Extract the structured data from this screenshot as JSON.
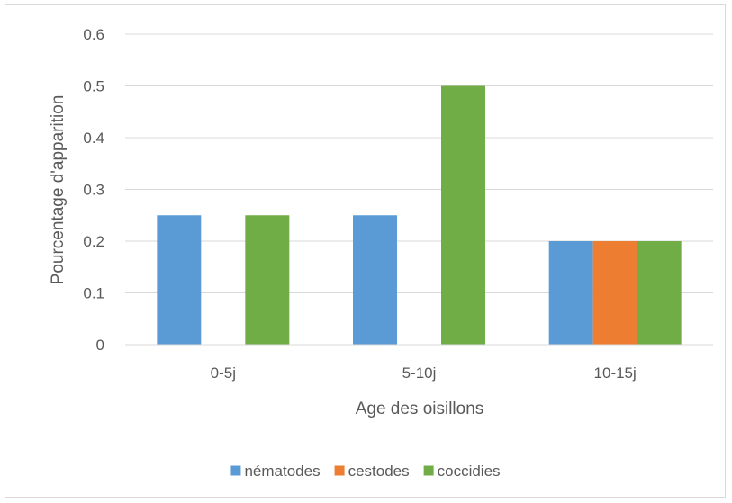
{
  "chart_data": {
    "type": "bar",
    "title": "",
    "xlabel": "Age des oisillons",
    "ylabel": "Pourcentage d'apparition",
    "categories": [
      "0-5j",
      "5-10j",
      "10-15j"
    ],
    "series": [
      {
        "name": "nématodes",
        "values": [
          0.25,
          0.25,
          0.2
        ],
        "color": "#5b9bd5"
      },
      {
        "name": "cestodes",
        "values": [
          0,
          0,
          0.2
        ],
        "color": "#ed7d31"
      },
      {
        "name": "coccidies",
        "values": [
          0.25,
          0.5,
          0.2
        ],
        "color": "#70ad47"
      }
    ],
    "ylim": [
      0,
      0.6
    ],
    "yticks": [
      "0",
      "0.1",
      "0.2",
      "0.3",
      "0.4",
      "0.5",
      "0.6"
    ],
    "grid": true,
    "gridline_color": "#d9d9d9",
    "legend_position": "bottom"
  }
}
